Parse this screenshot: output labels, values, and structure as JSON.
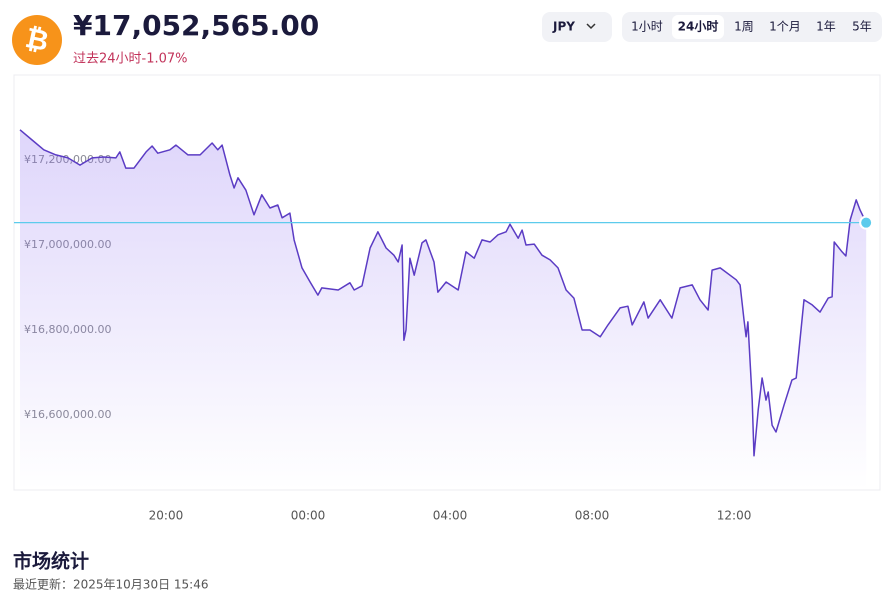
{
  "header": {
    "change": "过去24小时-1.07%"
  },
  "controls": {
    "currency": "JPY",
    "ranges": [
      "1小时",
      "24小时",
      "1周",
      "1个月",
      "1年",
      "5年"
    ],
    "selected_range": 1
  },
  "chart_data": {
    "type": "line",
    "current_price": {
      "value": 17052565,
      "label": "¥17,052,565.00"
    },
    "x": [
      15.89,
      16.23,
      16.56,
      16.9,
      17.24,
      17.58,
      17.92,
      18.25,
      18.59,
      18.7,
      18.87,
      19.1,
      19.44,
      19.61,
      19.77,
      20.11,
      20.28,
      20.62,
      20.96,
      21.3,
      21.46,
      21.58,
      21.8,
      21.92,
      22.03,
      22.25,
      22.48,
      22.7,
      22.93,
      23.15,
      23.27,
      23.49,
      23.61,
      23.83,
      24.06,
      24.28,
      24.39,
      24.85,
      25.18,
      25.3,
      25.52,
      25.75,
      25.97,
      26.2,
      26.42,
      26.54,
      26.65,
      26.7,
      26.76,
      26.87,
      26.99,
      27.21,
      27.32,
      27.55,
      27.66,
      27.89,
      28.23,
      28.45,
      28.68,
      28.9,
      29.13,
      29.35,
      29.58,
      29.69,
      29.92,
      30.03,
      30.14,
      30.37,
      30.59,
      30.82,
      31.04,
      31.27,
      31.49,
      31.72,
      31.94,
      32.23,
      32.45,
      32.79,
      33.01,
      33.13,
      33.46,
      33.58,
      33.92,
      34.25,
      34.48,
      34.82,
      35.04,
      35.27,
      35.38,
      35.61,
      36.06,
      36.17,
      36.28,
      36.34,
      36.39,
      36.51,
      36.56,
      36.68,
      36.79,
      36.9,
      36.96,
      37.07,
      37.18,
      37.41,
      37.63,
      37.75,
      37.97,
      38.2,
      38.42,
      38.65,
      38.76,
      38.82,
      39.04,
      39.15,
      39.27,
      39.44,
      39.55,
      39.72
    ],
    "values": [
      17271000,
      17247000,
      17224000,
      17212000,
      17205000,
      17188000,
      17205000,
      17207000,
      17205000,
      17219000,
      17181000,
      17181000,
      17219000,
      17233000,
      17216000,
      17224000,
      17235000,
      17212000,
      17212000,
      17240000,
      17224000,
      17235000,
      17165000,
      17134000,
      17158000,
      17129000,
      17071000,
      17118000,
      17087000,
      17094000,
      17064000,
      17075000,
      17012000,
      16946000,
      16913000,
      16882000,
      16899000,
      16894000,
      16911000,
      16894000,
      16904000,
      16993000,
      17031000,
      16993000,
      16976000,
      16960000,
      17000000,
      16776000,
      16800000,
      16969000,
      16929000,
      17005000,
      17012000,
      16960000,
      16889000,
      16913000,
      16894000,
      16984000,
      16969000,
      17012000,
      17007000,
      17024000,
      17031000,
      17049000,
      17016000,
      17035000,
      17000000,
      17002000,
      16976000,
      16965000,
      16946000,
      16894000,
      16875000,
      16800000,
      16800000,
      16784000,
      16812000,
      16852000,
      16856000,
      16812000,
      16866000,
      16828000,
      16871000,
      16828000,
      16899000,
      16906000,
      16871000,
      16847000,
      16941000,
      16946000,
      16918000,
      16906000,
      16824000,
      16784000,
      16819000,
      16635000,
      16504000,
      16612000,
      16687000,
      16635000,
      16654000,
      16576000,
      16560000,
      16624000,
      16682000,
      16687000,
      16871000,
      16859000,
      16842000,
      16875000,
      16878000,
      17007000,
      16984000,
      16974000,
      17059000,
      17106000,
      17082000,
      17052565
    ],
    "xlim": [
      15.72,
      40.11
    ],
    "xticks": [
      {
        "value": 20,
        "label": "20:00"
      },
      {
        "value": 24,
        "label": "00:00"
      },
      {
        "value": 28,
        "label": "04:00"
      },
      {
        "value": 32,
        "label": "08:00"
      },
      {
        "value": 36,
        "label": "12:00"
      }
    ],
    "ylim": [
      16423500,
      17400000
    ],
    "yticks": [
      {
        "value": 16600000,
        "label": "¥16,600,000.00"
      },
      {
        "value": 16800000,
        "label": "¥16,800,000.00"
      },
      {
        "value": 17000000,
        "label": "¥17,000,000.00"
      },
      {
        "value": 17200000,
        "label": "¥17,200,000.00"
      }
    ],
    "grid": false,
    "color": "#5b3cc4",
    "area_color": "#8b6cf0",
    "current_color": "#5ccbec"
  },
  "stats": {
    "title": "市场统计",
    "updated": "最近更新：2025年10月30日 15:46"
  }
}
